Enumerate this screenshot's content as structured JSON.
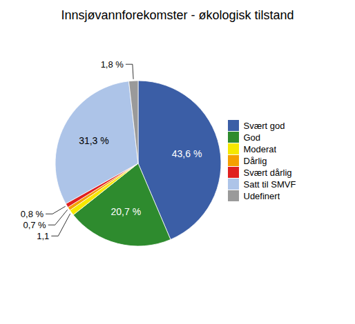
{
  "chart_data": {
    "type": "pie",
    "title": "Innsjøvannforekomster - økologisk tilstand",
    "categories": [
      "Svært god",
      "God",
      "Moderat",
      "Dårlig",
      "Svært dårlig",
      "Satt til SMVF",
      "Udefinert"
    ],
    "values": [
      43.6,
      20.7,
      1.1,
      0.7,
      0.8,
      31.3,
      1.8
    ],
    "value_labels": [
      "43,6 %",
      "20,7 %",
      "1,1",
      "0,7 %",
      "0,8 %",
      "31,3 %",
      "1,8 %"
    ],
    "colors": [
      "#3b5ea6",
      "#2e8b2e",
      "#f5e800",
      "#f5a000",
      "#e02020",
      "#adc4e8",
      "#9a9a9a"
    ],
    "data_labels": true,
    "legend": "right"
  }
}
